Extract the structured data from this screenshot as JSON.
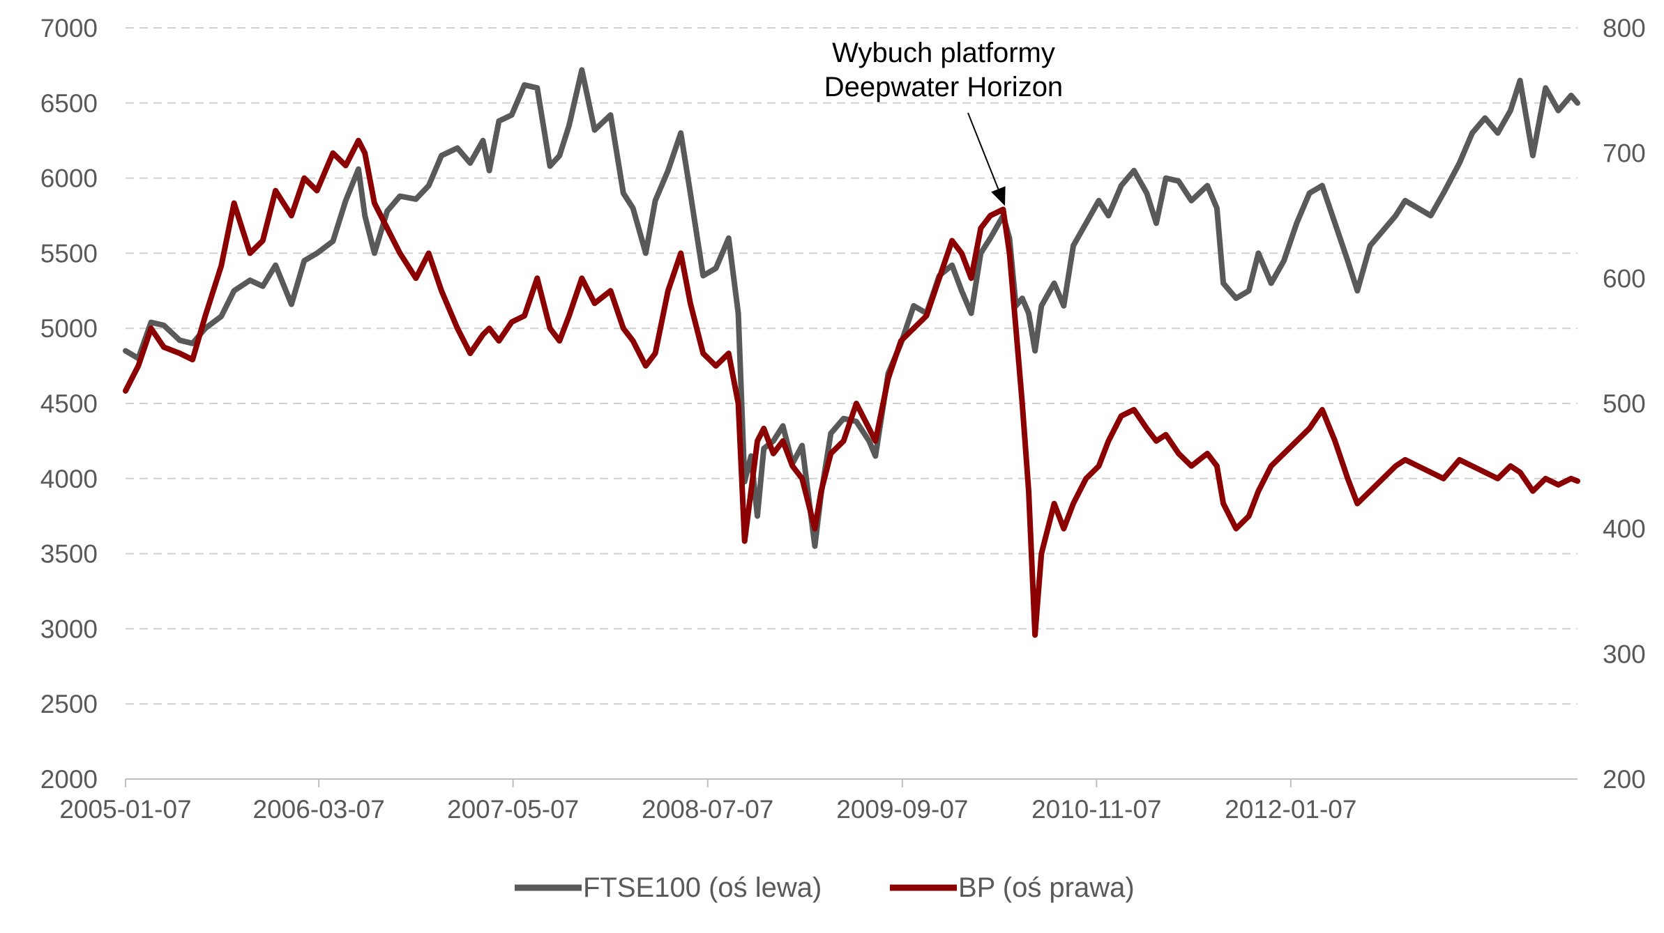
{
  "chart_data": {
    "type": "line",
    "title": "",
    "xlabel": "",
    "y_left_label": "",
    "y_right_label": "",
    "x_start": "2005-01-07",
    "x_end": "2013-09-27",
    "x_ticks": [
      "2005-01-07",
      "2006-03-07",
      "2007-05-07",
      "2008-07-07",
      "2009-09-07",
      "2010-11-07",
      "2012-01-07"
    ],
    "y_left": {
      "min": 2000,
      "max": 7000,
      "ticks": [
        2000,
        2500,
        3000,
        3500,
        4000,
        4500,
        5000,
        5500,
        6000,
        6500,
        7000
      ]
    },
    "y_right": {
      "min": 200,
      "max": 800,
      "ticks": [
        200,
        300,
        400,
        500,
        600,
        700,
        800
      ]
    },
    "grid": "horizontal-dashed",
    "legend_position": "bottom-center",
    "annotation": {
      "lines": [
        "Wybuch platformy",
        "Deepwater Horizon"
      ],
      "target_date": "2010-04-20",
      "target_value": 5750,
      "axis": "left"
    },
    "series": [
      {
        "name": "FTSE100 (oś lewa)",
        "axis": "left",
        "color": "#595959",
        "points": [
          [
            "2005-01-07",
            4850
          ],
          [
            "2005-02-04",
            4800
          ],
          [
            "2005-03-04",
            5040
          ],
          [
            "2005-04-01",
            5020
          ],
          [
            "2005-05-06",
            4920
          ],
          [
            "2005-06-03",
            4900
          ],
          [
            "2005-07-01",
            5000
          ],
          [
            "2005-08-05",
            5080
          ],
          [
            "2005-09-02",
            5250
          ],
          [
            "2005-10-07",
            5320
          ],
          [
            "2005-11-04",
            5280
          ],
          [
            "2005-12-02",
            5420
          ],
          [
            "2006-01-06",
            5160
          ],
          [
            "2006-02-03",
            5450
          ],
          [
            "2006-03-03",
            5500
          ],
          [
            "2006-04-07",
            5580
          ],
          [
            "2006-05-05",
            5850
          ],
          [
            "2006-06-02",
            6060
          ],
          [
            "2006-06-16",
            5750
          ],
          [
            "2006-07-07",
            5500
          ],
          [
            "2006-08-04",
            5780
          ],
          [
            "2006-09-01",
            5880
          ],
          [
            "2006-10-06",
            5860
          ],
          [
            "2006-11-03",
            5950
          ],
          [
            "2006-12-01",
            6150
          ],
          [
            "2007-01-05",
            6200
          ],
          [
            "2007-02-02",
            6100
          ],
          [
            "2007-03-02",
            6250
          ],
          [
            "2007-03-16",
            6050
          ],
          [
            "2007-04-06",
            6380
          ],
          [
            "2007-05-04",
            6420
          ],
          [
            "2007-06-01",
            6620
          ],
          [
            "2007-06-29",
            6600
          ],
          [
            "2007-07-27",
            6080
          ],
          [
            "2007-08-17",
            6150
          ],
          [
            "2007-09-07",
            6350
          ],
          [
            "2007-10-05",
            6720
          ],
          [
            "2007-11-02",
            6320
          ],
          [
            "2007-12-07",
            6420
          ],
          [
            "2008-01-04",
            5900
          ],
          [
            "2008-01-25",
            5800
          ],
          [
            "2008-02-22",
            5500
          ],
          [
            "2008-03-14",
            5850
          ],
          [
            "2008-04-11",
            6050
          ],
          [
            "2008-05-09",
            6300
          ],
          [
            "2008-05-30",
            5900
          ],
          [
            "2008-06-27",
            5350
          ],
          [
            "2008-07-25",
            5400
          ],
          [
            "2008-08-22",
            5600
          ],
          [
            "2008-09-12",
            5100
          ],
          [
            "2008-09-26",
            3980
          ],
          [
            "2008-10-10",
            4150
          ],
          [
            "2008-10-24",
            3750
          ],
          [
            "2008-11-07",
            4200
          ],
          [
            "2008-11-28",
            4250
          ],
          [
            "2008-12-19",
            4350
          ],
          [
            "2009-01-09",
            4100
          ],
          [
            "2009-01-30",
            4220
          ],
          [
            "2009-02-27",
            3550
          ],
          [
            "2009-03-13",
            3900
          ],
          [
            "2009-04-03",
            4300
          ],
          [
            "2009-05-01",
            4400
          ],
          [
            "2009-05-29",
            4380
          ],
          [
            "2009-06-26",
            4250
          ],
          [
            "2009-07-10",
            4150
          ],
          [
            "2009-08-07",
            4700
          ],
          [
            "2009-09-04",
            4900
          ],
          [
            "2009-10-02",
            5150
          ],
          [
            "2009-10-30",
            5100
          ],
          [
            "2009-11-27",
            5350
          ],
          [
            "2009-12-25",
            5420
          ],
          [
            "2010-01-15",
            5250
          ],
          [
            "2010-02-05",
            5100
          ],
          [
            "2010-02-26",
            5500
          ],
          [
            "2010-03-19",
            5600
          ],
          [
            "2010-04-16",
            5750
          ],
          [
            "2010-04-30",
            5600
          ],
          [
            "2010-05-14",
            5150
          ],
          [
            "2010-05-28",
            5200
          ],
          [
            "2010-06-11",
            5100
          ],
          [
            "2010-06-25",
            4850
          ],
          [
            "2010-07-09",
            5150
          ],
          [
            "2010-08-06",
            5300
          ],
          [
            "2010-08-27",
            5150
          ],
          [
            "2010-09-17",
            5550
          ],
          [
            "2010-10-15",
            5700
          ],
          [
            "2010-11-12",
            5850
          ],
          [
            "2010-12-03",
            5750
          ],
          [
            "2010-12-31",
            5950
          ],
          [
            "2011-01-28",
            6050
          ],
          [
            "2011-02-25",
            5900
          ],
          [
            "2011-03-18",
            5700
          ],
          [
            "2011-04-08",
            6000
          ],
          [
            "2011-05-06",
            5980
          ],
          [
            "2011-06-03",
            5850
          ],
          [
            "2011-07-08",
            5950
          ],
          [
            "2011-07-29",
            5800
          ],
          [
            "2011-08-12",
            5300
          ],
          [
            "2011-09-09",
            5200
          ],
          [
            "2011-10-07",
            5250
          ],
          [
            "2011-10-28",
            5500
          ],
          [
            "2011-11-25",
            5300
          ],
          [
            "2011-12-23",
            5450
          ],
          [
            "2012-01-20",
            5700
          ],
          [
            "2012-02-17",
            5900
          ],
          [
            "2012-03-16",
            5950
          ],
          [
            "2012-04-13",
            5700
          ],
          [
            "2012-05-11",
            5450
          ],
          [
            "2012-06-01",
            5250
          ],
          [
            "2012-06-29",
            5550
          ],
          [
            "2012-07-27",
            5650
          ],
          [
            "2012-08-24",
            5750
          ],
          [
            "2012-09-14",
            5850
          ],
          [
            "2012-10-12",
            5800
          ],
          [
            "2012-11-09",
            5750
          ],
          [
            "2012-12-07",
            5900
          ],
          [
            "2013-01-11",
            6100
          ],
          [
            "2013-02-08",
            6300
          ],
          [
            "2013-03-08",
            6400
          ],
          [
            "2013-04-05",
            6300
          ],
          [
            "2013-05-03",
            6450
          ],
          [
            "2013-05-24",
            6650
          ],
          [
            "2013-06-21",
            6150
          ],
          [
            "2013-07-19",
            6600
          ],
          [
            "2013-08-16",
            6450
          ],
          [
            "2013-09-13",
            6550
          ],
          [
            "2013-09-27",
            6500
          ]
        ]
      },
      {
        "name": "BP (oś prawa)",
        "axis": "right",
        "color": "#8B0000",
        "points": [
          [
            "2005-01-07",
            510
          ],
          [
            "2005-02-04",
            530
          ],
          [
            "2005-03-04",
            560
          ],
          [
            "2005-04-01",
            545
          ],
          [
            "2005-05-06",
            540
          ],
          [
            "2005-06-03",
            535
          ],
          [
            "2005-07-01",
            570
          ],
          [
            "2005-08-05",
            610
          ],
          [
            "2005-09-02",
            660
          ],
          [
            "2005-10-07",
            620
          ],
          [
            "2005-11-04",
            630
          ],
          [
            "2005-12-02",
            670
          ],
          [
            "2006-01-06",
            650
          ],
          [
            "2006-02-03",
            680
          ],
          [
            "2006-03-03",
            670
          ],
          [
            "2006-04-07",
            700
          ],
          [
            "2006-05-05",
            690
          ],
          [
            "2006-06-02",
            710
          ],
          [
            "2006-06-16",
            700
          ],
          [
            "2006-07-07",
            660
          ],
          [
            "2006-08-04",
            640
          ],
          [
            "2006-09-01",
            620
          ],
          [
            "2006-10-06",
            600
          ],
          [
            "2006-11-03",
            620
          ],
          [
            "2006-12-01",
            590
          ],
          [
            "2007-01-05",
            560
          ],
          [
            "2007-02-02",
            540
          ],
          [
            "2007-03-02",
            555
          ],
          [
            "2007-03-16",
            560
          ],
          [
            "2007-04-06",
            550
          ],
          [
            "2007-05-04",
            565
          ],
          [
            "2007-06-01",
            570
          ],
          [
            "2007-06-29",
            600
          ],
          [
            "2007-07-27",
            560
          ],
          [
            "2007-08-17",
            550
          ],
          [
            "2007-09-07",
            570
          ],
          [
            "2007-10-05",
            600
          ],
          [
            "2007-11-02",
            580
          ],
          [
            "2007-12-07",
            590
          ],
          [
            "2008-01-04",
            560
          ],
          [
            "2008-01-25",
            550
          ],
          [
            "2008-02-22",
            530
          ],
          [
            "2008-03-14",
            540
          ],
          [
            "2008-04-11",
            590
          ],
          [
            "2008-05-09",
            620
          ],
          [
            "2008-05-30",
            580
          ],
          [
            "2008-06-27",
            540
          ],
          [
            "2008-07-25",
            530
          ],
          [
            "2008-08-22",
            540
          ],
          [
            "2008-09-12",
            500
          ],
          [
            "2008-09-26",
            390
          ],
          [
            "2008-10-10",
            430
          ],
          [
            "2008-10-24",
            470
          ],
          [
            "2008-11-07",
            480
          ],
          [
            "2008-11-28",
            460
          ],
          [
            "2008-12-19",
            470
          ],
          [
            "2009-01-09",
            450
          ],
          [
            "2009-01-30",
            440
          ],
          [
            "2009-02-27",
            400
          ],
          [
            "2009-03-13",
            430
          ],
          [
            "2009-04-03",
            460
          ],
          [
            "2009-05-01",
            470
          ],
          [
            "2009-05-29",
            500
          ],
          [
            "2009-06-26",
            480
          ],
          [
            "2009-07-10",
            470
          ],
          [
            "2009-08-07",
            520
          ],
          [
            "2009-09-04",
            550
          ],
          [
            "2009-10-02",
            560
          ],
          [
            "2009-10-30",
            570
          ],
          [
            "2009-11-27",
            600
          ],
          [
            "2009-12-25",
            630
          ],
          [
            "2010-01-15",
            620
          ],
          [
            "2010-02-05",
            600
          ],
          [
            "2010-02-26",
            640
          ],
          [
            "2010-03-19",
            650
          ],
          [
            "2010-04-16",
            655
          ],
          [
            "2010-04-30",
            620
          ],
          [
            "2010-05-14",
            560
          ],
          [
            "2010-05-28",
            500
          ],
          [
            "2010-06-11",
            430
          ],
          [
            "2010-06-25",
            315
          ],
          [
            "2010-07-09",
            380
          ],
          [
            "2010-08-06",
            420
          ],
          [
            "2010-08-27",
            400
          ],
          [
            "2010-09-17",
            420
          ],
          [
            "2010-10-15",
            440
          ],
          [
            "2010-11-12",
            450
          ],
          [
            "2010-12-03",
            470
          ],
          [
            "2010-12-31",
            490
          ],
          [
            "2011-01-28",
            495
          ],
          [
            "2011-02-25",
            480
          ],
          [
            "2011-03-18",
            470
          ],
          [
            "2011-04-08",
            475
          ],
          [
            "2011-05-06",
            460
          ],
          [
            "2011-06-03",
            450
          ],
          [
            "2011-07-08",
            460
          ],
          [
            "2011-07-29",
            450
          ],
          [
            "2011-08-12",
            420
          ],
          [
            "2011-09-09",
            400
          ],
          [
            "2011-10-07",
            410
          ],
          [
            "2011-10-28",
            430
          ],
          [
            "2011-11-25",
            450
          ],
          [
            "2011-12-23",
            460
          ],
          [
            "2012-01-20",
            470
          ],
          [
            "2012-02-17",
            480
          ],
          [
            "2012-03-16",
            495
          ],
          [
            "2012-04-13",
            470
          ],
          [
            "2012-05-11",
            440
          ],
          [
            "2012-06-01",
            420
          ],
          [
            "2012-06-29",
            430
          ],
          [
            "2012-07-27",
            440
          ],
          [
            "2012-08-24",
            450
          ],
          [
            "2012-09-14",
            455
          ],
          [
            "2012-10-12",
            450
          ],
          [
            "2012-11-09",
            445
          ],
          [
            "2012-12-07",
            440
          ],
          [
            "2013-01-11",
            455
          ],
          [
            "2013-02-08",
            450
          ],
          [
            "2013-03-08",
            445
          ],
          [
            "2013-04-05",
            440
          ],
          [
            "2013-05-03",
            450
          ],
          [
            "2013-05-24",
            445
          ],
          [
            "2013-06-21",
            430
          ],
          [
            "2013-07-19",
            440
          ],
          [
            "2013-08-16",
            435
          ],
          [
            "2013-09-13",
            440
          ],
          [
            "2013-09-27",
            438
          ]
        ]
      }
    ]
  }
}
